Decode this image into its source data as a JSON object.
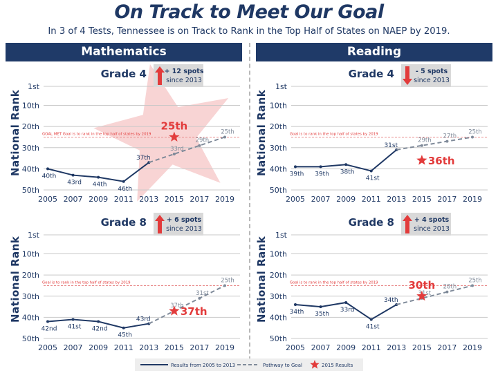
{
  "title": "On Track to Meet Our Goal",
  "subtitle": "In 3 of 4 Tests, Tennessee is on Track to Rank in the Top Half of States on NAEP by 2019.",
  "panels": {
    "math": "Mathematics",
    "reading": "Reading"
  },
  "y_axis_label": "National Rank",
  "legend": {
    "results": "Results from 2005 to 2013",
    "pathway": "Pathway to Goal",
    "star": "2015 Results"
  },
  "colors": {
    "navy": "#1f3864",
    "gray": "#7f8a99",
    "red": "#e23b3b",
    "star_fill": "#f5c6c6",
    "badge": "#d9d9d9"
  },
  "chart_data": [
    {
      "type": "line",
      "id": "math-g4",
      "subject": "Mathematics",
      "title": "Grade 4",
      "badge": {
        "direction": "up",
        "line1": "+ 12 spots",
        "line2": "since 2013"
      },
      "x": [
        2005,
        2007,
        2009,
        2011,
        2013,
        2015,
        2017,
        2019
      ],
      "yticks": [
        "1st",
        "10th",
        "20th",
        "30th",
        "40th",
        "50th"
      ],
      "ylim": [
        1,
        50
      ],
      "results": [
        40,
        43,
        44,
        46,
        37
      ],
      "results_labels": [
        "40th",
        "43rd",
        "44th",
        "46th",
        "37th"
      ],
      "pathway": [
        37,
        33,
        29,
        25
      ],
      "pathway_labels": [
        "37th",
        "33rd",
        "29th",
        "25th"
      ],
      "goal_text": "GOAL MET Goal is to rank in the top half of states by 2019",
      "actual_2015": 25,
      "actual_label": "25th",
      "big_star": true
    },
    {
      "type": "line",
      "id": "read-g4",
      "subject": "Reading",
      "title": "Grade 4",
      "badge": {
        "direction": "down",
        "line1": "- 5 spots",
        "line2": "since 2013"
      },
      "x": [
        2005,
        2007,
        2009,
        2011,
        2013,
        2015,
        2017,
        2019
      ],
      "yticks": [
        "1st",
        "10th",
        "20th",
        "30th",
        "40th",
        "50th"
      ],
      "ylim": [
        1,
        50
      ],
      "results": [
        39,
        39,
        38,
        41,
        31
      ],
      "results_labels": [
        "39th",
        "39th",
        "38th",
        "41st",
        "31st"
      ],
      "pathway": [
        31,
        29,
        27,
        25
      ],
      "pathway_labels": [
        "31st",
        "29th",
        "27th",
        "25th"
      ],
      "goal_text": "Goal is to rank in the top half of states by 2019",
      "actual_2015": 36,
      "actual_label": "36th",
      "big_star": false
    },
    {
      "type": "line",
      "id": "math-g8",
      "subject": "Mathematics",
      "title": "Grade 8",
      "badge": {
        "direction": "up",
        "line1": "+ 6 spots",
        "line2": "since 2013"
      },
      "x": [
        2005,
        2007,
        2009,
        2011,
        2013,
        2015,
        2017,
        2019
      ],
      "yticks": [
        "1st",
        "10th",
        "20th",
        "30th",
        "40th",
        "50th"
      ],
      "ylim": [
        1,
        50
      ],
      "results": [
        42,
        41,
        42,
        45,
        43
      ],
      "results_labels": [
        "42nd",
        "41st",
        "42nd",
        "45th",
        "43rd"
      ],
      "pathway": [
        43,
        37,
        31,
        25
      ],
      "pathway_labels": [
        "43rd",
        "37th",
        "31st",
        "25th"
      ],
      "goal_text": "Goal is to rank in the top half of states by 2019",
      "actual_2015": 37,
      "actual_label": "37th",
      "big_star": false
    },
    {
      "type": "line",
      "id": "read-g8",
      "subject": "Reading",
      "title": "Grade 8",
      "badge": {
        "direction": "up",
        "line1": "+ 4 spots",
        "line2": "since 2013"
      },
      "x": [
        2005,
        2007,
        2009,
        2011,
        2013,
        2015,
        2017,
        2019
      ],
      "yticks": [
        "1st",
        "10th",
        "20th",
        "30th",
        "40th",
        "50th"
      ],
      "ylim": [
        1,
        50
      ],
      "results": [
        34,
        35,
        33,
        41,
        34
      ],
      "results_labels": [
        "34th",
        "35th",
        "33rd",
        "41st",
        "34th"
      ],
      "pathway": [
        34,
        31,
        28,
        25
      ],
      "pathway_labels": [
        "34th",
        "31st",
        "28th",
        "25th"
      ],
      "goal_text": "Goal is to rank in the top half of states by 2019",
      "actual_2015": 30,
      "actual_label": "30th",
      "big_star": false
    }
  ]
}
